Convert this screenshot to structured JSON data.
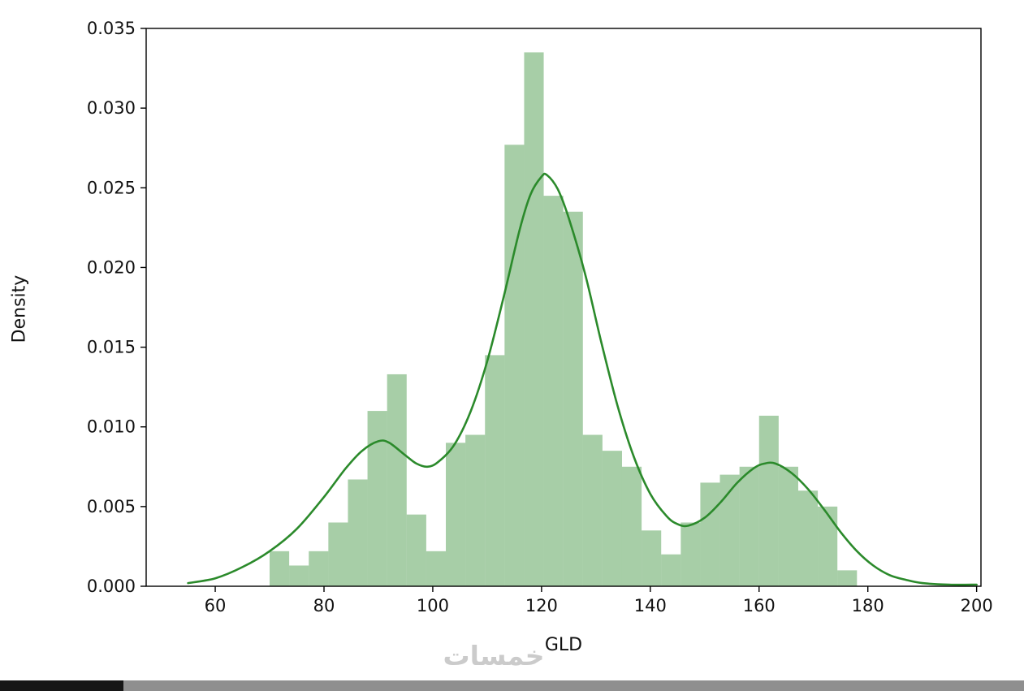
{
  "page": {
    "background": "#ffffff"
  },
  "chart_data": {
    "type": "bar",
    "subtype": "histogram_with_kde",
    "title": "",
    "xlabel": "GLD",
    "ylabel": "Density",
    "xlim": [
      47.3,
      200.8
    ],
    "ylim": [
      0,
      0.035
    ],
    "grid": false,
    "legend": "none",
    "xticks": {
      "values": [
        60,
        80,
        100,
        120,
        140,
        160,
        180,
        200
      ],
      "labels": [
        "60",
        "80",
        "100",
        "120",
        "140",
        "160",
        "180",
        "200"
      ]
    },
    "yticks": {
      "values": [
        0.0,
        0.005,
        0.01,
        0.015,
        0.02,
        0.025,
        0.03,
        0.035
      ],
      "labels": [
        "0.000",
        "0.005",
        "0.010",
        "0.015",
        "0.020",
        "0.025",
        "0.030",
        "0.035"
      ]
    },
    "bin_width": 3.6,
    "bins": [
      {
        "x": 70.0,
        "h": 0.0022
      },
      {
        "x": 73.6,
        "h": 0.0013
      },
      {
        "x": 77.2,
        "h": 0.0022
      },
      {
        "x": 80.8,
        "h": 0.004
      },
      {
        "x": 84.4,
        "h": 0.0067
      },
      {
        "x": 88.0,
        "h": 0.011
      },
      {
        "x": 91.6,
        "h": 0.0133
      },
      {
        "x": 95.2,
        "h": 0.0045
      },
      {
        "x": 98.8,
        "h": 0.0022
      },
      {
        "x": 102.4,
        "h": 0.009
      },
      {
        "x": 106.0,
        "h": 0.0095
      },
      {
        "x": 109.6,
        "h": 0.0145
      },
      {
        "x": 113.2,
        "h": 0.0277
      },
      {
        "x": 116.8,
        "h": 0.0335
      },
      {
        "x": 120.4,
        "h": 0.0245
      },
      {
        "x": 124.0,
        "h": 0.0235
      },
      {
        "x": 127.6,
        "h": 0.0095
      },
      {
        "x": 131.2,
        "h": 0.0085
      },
      {
        "x": 134.8,
        "h": 0.0075
      },
      {
        "x": 138.4,
        "h": 0.0035
      },
      {
        "x": 142.0,
        "h": 0.002
      },
      {
        "x": 145.6,
        "h": 0.004
      },
      {
        "x": 149.2,
        "h": 0.0065
      },
      {
        "x": 152.8,
        "h": 0.007
      },
      {
        "x": 156.4,
        "h": 0.0075
      },
      {
        "x": 160.0,
        "h": 0.0107
      },
      {
        "x": 163.6,
        "h": 0.0075
      },
      {
        "x": 167.2,
        "h": 0.006
      },
      {
        "x": 170.8,
        "h": 0.005
      },
      {
        "x": 174.4,
        "h": 0.001
      }
    ],
    "kde": [
      [
        55,
        0.0002
      ],
      [
        60,
        0.0005
      ],
      [
        65,
        0.0012
      ],
      [
        70,
        0.0022
      ],
      [
        75,
        0.0036
      ],
      [
        80,
        0.0056
      ],
      [
        84,
        0.0074
      ],
      [
        87,
        0.0085
      ],
      [
        90,
        0.0091
      ],
      [
        92,
        0.009
      ],
      [
        95,
        0.0082
      ],
      [
        97,
        0.0077
      ],
      [
        99,
        0.0075
      ],
      [
        101,
        0.0078
      ],
      [
        104,
        0.0089
      ],
      [
        107,
        0.011
      ],
      [
        110,
        0.0141
      ],
      [
        113,
        0.0181
      ],
      [
        116,
        0.0224
      ],
      [
        118,
        0.0246
      ],
      [
        120,
        0.0257
      ],
      [
        121,
        0.0258
      ],
      [
        123,
        0.0249
      ],
      [
        125,
        0.0231
      ],
      [
        128,
        0.0196
      ],
      [
        131,
        0.0153
      ],
      [
        134,
        0.0113
      ],
      [
        137,
        0.0081
      ],
      [
        140,
        0.0058
      ],
      [
        143,
        0.0044
      ],
      [
        145,
        0.0039
      ],
      [
        147,
        0.0038
      ],
      [
        150,
        0.0043
      ],
      [
        153,
        0.0053
      ],
      [
        156,
        0.0065
      ],
      [
        159,
        0.0074
      ],
      [
        161,
        0.0077
      ],
      [
        163,
        0.0077
      ],
      [
        166,
        0.0071
      ],
      [
        169,
        0.0061
      ],
      [
        172,
        0.0048
      ],
      [
        175,
        0.0034
      ],
      [
        178,
        0.0022
      ],
      [
        181,
        0.0013
      ],
      [
        184,
        0.0007
      ],
      [
        187,
        0.0004
      ],
      [
        190,
        0.0002
      ],
      [
        195,
        0.0001
      ],
      [
        200,
        0.0001
      ]
    ],
    "colors": {
      "bar_fill": "rgba(45, 138, 45, 0.42)",
      "line": "#2b8a2b",
      "axis": "#000000",
      "tick_text": "#111111"
    }
  },
  "watermark": {
    "text": "خمسات",
    "color": "#cbcbcb"
  },
  "bottom_bar": {
    "left_color": "#161616",
    "right_color": "#8f8f8f"
  }
}
